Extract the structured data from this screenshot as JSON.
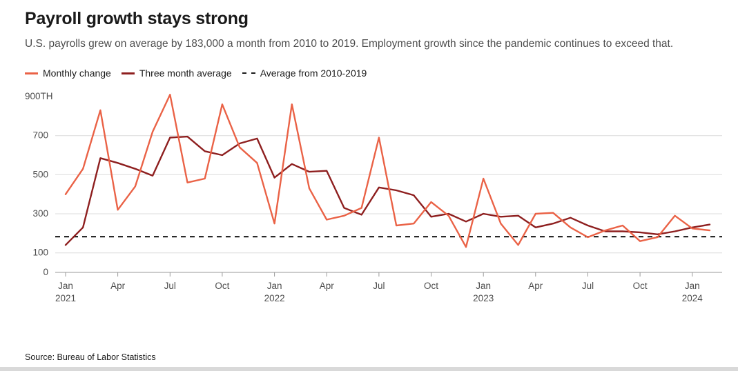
{
  "header": {
    "title": "Payroll growth stays strong",
    "subtitle": "U.S. payrolls grew on average by 183,000 a month from 2010 to 2019. Employment growth since the pandemic continues to exceed that."
  },
  "legend": {
    "position": "top",
    "items": [
      {
        "label": "Monthly change",
        "color": "#EA6246",
        "style": "solid"
      },
      {
        "label": "Three month average",
        "color": "#8E1F1F",
        "style": "solid"
      },
      {
        "label": "Average from 2010-2019",
        "color": "#1a1a1a",
        "style": "dashed"
      }
    ]
  },
  "chart_data": {
    "type": "line",
    "title": "Payroll growth stays strong",
    "xlabel": "",
    "ylabel": "900TH",
    "ylim": [
      0,
      900
    ],
    "grid": true,
    "x": [
      "Jan 2021",
      "Feb 2021",
      "Mar 2021",
      "Apr 2021",
      "May 2021",
      "Jun 2021",
      "Jul 2021",
      "Aug 2021",
      "Sep 2021",
      "Oct 2021",
      "Nov 2021",
      "Dec 2021",
      "Jan 2022",
      "Feb 2022",
      "Mar 2022",
      "Apr 2022",
      "May 2022",
      "Jun 2022",
      "Jul 2022",
      "Aug 2022",
      "Sep 2022",
      "Oct 2022",
      "Nov 2022",
      "Dec 2022",
      "Jan 2023",
      "Feb 2023",
      "Mar 2023",
      "Apr 2023",
      "May 2023",
      "Jun 2023",
      "Jul 2023",
      "Aug 2023",
      "Sep 2023",
      "Oct 2023",
      "Nov 2023",
      "Dec 2023",
      "Jan 2024",
      "Feb 2024"
    ],
    "series": [
      {
        "name": "Monthly change",
        "data_name": "monthly-change-line",
        "color": "#EA6246",
        "values": [
          400,
          530,
          830,
          320,
          440,
          720,
          910,
          460,
          480,
          860,
          640,
          560,
          250,
          860,
          430,
          270,
          290,
          330,
          690,
          240,
          250,
          360,
          290,
          130,
          480,
          250,
          140,
          300,
          305,
          230,
          180,
          215,
          240,
          160,
          180,
          290,
          225,
          215
        ]
      },
      {
        "name": "Three month average",
        "data_name": "three-month-average-line",
        "color": "#8E1F1F",
        "values": [
          140,
          230,
          585,
          560,
          530,
          495,
          690,
          695,
          620,
          600,
          660,
          685,
          485,
          555,
          515,
          520,
          330,
          295,
          435,
          420,
          395,
          285,
          300,
          260,
          300,
          285,
          290,
          230,
          250,
          280,
          240,
          210,
          210,
          205,
          195,
          210,
          230,
          245
        ]
      }
    ],
    "reference_line": {
      "name": "Average from 2010-2019",
      "value": 183,
      "color": "#1a1a1a",
      "style": "dashed"
    },
    "y_axis": {
      "gridlines": [
        100,
        300,
        500,
        700
      ],
      "labels": [
        {
          "text": "900TH",
          "value": 900
        },
        {
          "text": "700",
          "value": 700
        },
        {
          "text": "500",
          "value": 500
        },
        {
          "text": "300",
          "value": 300
        },
        {
          "text": "100",
          "value": 100
        },
        {
          "text": "0",
          "value": 0
        }
      ]
    },
    "x_ticks": [
      {
        "index": 0,
        "month": "Jan",
        "year": "2021"
      },
      {
        "index": 3,
        "month": "Apr"
      },
      {
        "index": 6,
        "month": "Jul"
      },
      {
        "index": 9,
        "month": "Oct"
      },
      {
        "index": 12,
        "month": "Jan",
        "year": "2022"
      },
      {
        "index": 15,
        "month": "Apr"
      },
      {
        "index": 18,
        "month": "Jul"
      },
      {
        "index": 21,
        "month": "Oct"
      },
      {
        "index": 24,
        "month": "Jan",
        "year": "2023"
      },
      {
        "index": 27,
        "month": "Apr"
      },
      {
        "index": 30,
        "month": "Jul"
      },
      {
        "index": 33,
        "month": "Oct"
      },
      {
        "index": 36,
        "month": "Jan",
        "year": "2024"
      }
    ]
  },
  "source": "Source: Bureau of Labor Statistics"
}
